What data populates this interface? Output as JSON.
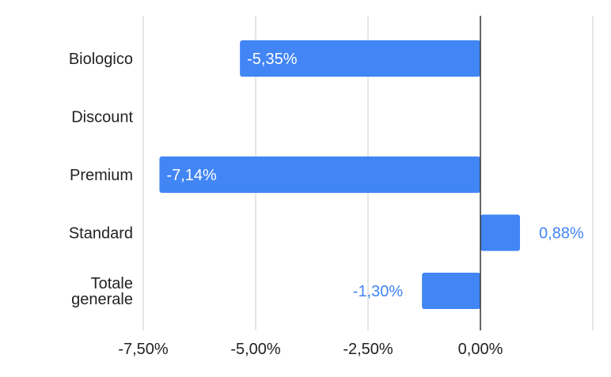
{
  "chart_data": {
    "type": "bar",
    "orientation": "horizontal",
    "categories": [
      [
        "Biologico"
      ],
      [
        "Discount"
      ],
      [
        "Premium"
      ],
      [
        "Standard"
      ],
      [
        "Totale",
        "generale"
      ]
    ],
    "values": [
      -5.35,
      null,
      -7.14,
      0.88,
      -1.3
    ],
    "data_labels": [
      "-5,35%",
      "",
      "-7,14%",
      "0,88%",
      "-1,30%"
    ],
    "x_ticks": [
      {
        "value": -7.5,
        "label": "-7,50%"
      },
      {
        "value": -5.0,
        "label": "-5,00%"
      },
      {
        "value": -2.5,
        "label": "-2,50%"
      },
      {
        "value": 0.0,
        "label": "0,00%"
      }
    ],
    "xlim": [
      -7.5,
      2.5
    ],
    "grid": true,
    "legend": "none",
    "bar_color": "#4285f4"
  }
}
